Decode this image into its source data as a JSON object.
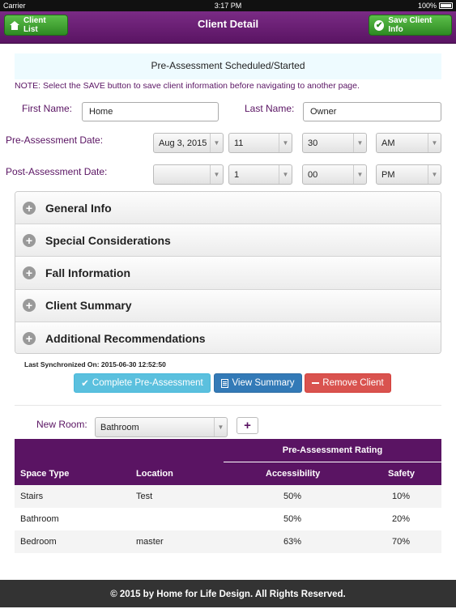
{
  "status_bar": {
    "carrier": "Carrier",
    "time": "3:17 PM",
    "battery": "100%"
  },
  "nav": {
    "title": "Client Detail",
    "left_button": "Client List",
    "right_button": "Save Client Info",
    "accent": "#5a1463",
    "button_color": "#3aa12c"
  },
  "banner": "Pre-Assessment Scheduled/Started",
  "note": "NOTE: Select the SAVE button to save client information before navigating to another page.",
  "form": {
    "first_name_label": "First Name:",
    "first_name_value": "Home",
    "last_name_label": "Last Name:",
    "last_name_value": "Owner",
    "pre_label": "Pre-Assessment Date:",
    "pre_date": "Aug 3, 2015",
    "pre_hour": "11",
    "pre_minute": "30",
    "pre_ampm": "AM",
    "post_label": "Post-Assessment Date:",
    "post_date": "",
    "post_hour": "1",
    "post_minute": "00",
    "post_ampm": "PM"
  },
  "sections": [
    "General Info",
    "Special Considerations",
    "Fall Information",
    "Client Summary",
    "Additional Recommendations"
  ],
  "sync": "Last Synchronized On: 2015-06-30 12:52:50",
  "actions": {
    "complete": "Complete Pre-Assessment",
    "view": "View Summary",
    "remove": "Remove Client"
  },
  "new_room": {
    "label": "New Room:",
    "value": "Bathroom"
  },
  "table": {
    "group_header": "Pre-Assessment Rating",
    "headers": [
      "Space Type",
      "Location",
      "Accessibility",
      "Safety"
    ],
    "rows": [
      [
        "Stairs",
        "Test",
        "50%",
        "10%"
      ],
      [
        "Bathroom",
        "",
        "50%",
        "20%"
      ],
      [
        "Bedroom",
        "master",
        "63%",
        "70%"
      ]
    ]
  },
  "footer": "© 2015 by Home for Life Design. All Rights Reserved."
}
